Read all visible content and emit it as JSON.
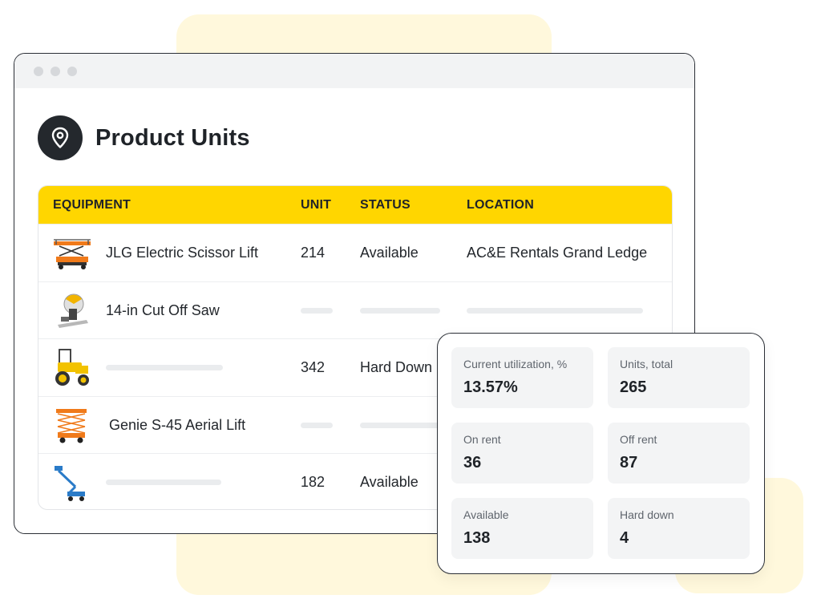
{
  "page": {
    "title": "Product Units"
  },
  "table": {
    "headers": {
      "equipment": "EQUIPMENT",
      "unit": "UNIT",
      "status": "STATUS",
      "location": "LOCATION"
    },
    "rows": [
      {
        "name": "JLG Electric Scissor Lift",
        "unit": "214",
        "status": "Available",
        "location": "AC&E Rentals Grand Ledge",
        "icon": "scissor-lift-icon"
      },
      {
        "name": "14-in Cut Off Saw",
        "unit": "",
        "status": "",
        "location": "",
        "icon": "cut-off-saw-icon"
      },
      {
        "name": "",
        "unit": "342",
        "status": "Hard Down",
        "location": "",
        "icon": "roller-compactor-icon"
      },
      {
        "name": "Genie S-45 Aerial Lift",
        "unit": "",
        "status": "",
        "location": "",
        "icon": "aerial-lift-icon"
      },
      {
        "name": "",
        "unit": "182",
        "status": "Available",
        "location": "",
        "icon": "boom-lift-icon"
      }
    ]
  },
  "stats": [
    {
      "label": "Current utilization, %",
      "value": "13.57%"
    },
    {
      "label": "Units, total",
      "value": "265"
    },
    {
      "label": "On rent",
      "value": "36"
    },
    {
      "label": "Off rent",
      "value": "87"
    },
    {
      "label": "Available",
      "value": "138"
    },
    {
      "label": "Hard down",
      "value": "4"
    }
  ],
  "colors": {
    "accent": "#ffd600",
    "dark": "#24282d",
    "background_blob": "#fff8dc"
  }
}
